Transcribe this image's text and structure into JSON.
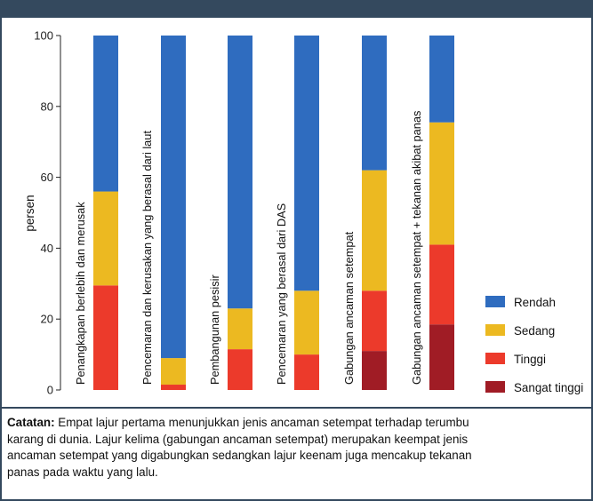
{
  "chart_data": {
    "type": "bar",
    "stacked": true,
    "ylabel": "persen",
    "ylim": [
      0,
      100
    ],
    "yticks": [
      0,
      20,
      40,
      60,
      80,
      100
    ],
    "categories": [
      "Penangkapan berlebih dan merusak",
      "Pencemaran dan kerusakan yang berasal dari laut",
      "Pembangunan pesisir",
      "Pencemaran yang berasal dari DAS",
      "Gabungan ancaman setempat",
      "Gabungan ancaman setempat + tekanan akibat panas"
    ],
    "series": [
      {
        "name": "Sangat tinggi",
        "color": "#a01c25",
        "values": [
          0,
          0,
          0,
          0,
          11,
          18.5
        ]
      },
      {
        "name": "Tinggi",
        "color": "#ec3a2b",
        "values": [
          29.5,
          1.5,
          11.5,
          10,
          17,
          22.5
        ]
      },
      {
        "name": "Sedang",
        "color": "#ecb921",
        "values": [
          26.5,
          7.5,
          11.5,
          18,
          34,
          34.5
        ]
      },
      {
        "name": "Rendah",
        "color": "#2f6cbf",
        "values": [
          44,
          91,
          77,
          72,
          38,
          24.5
        ]
      }
    ],
    "legend_order": [
      "Rendah",
      "Sedang",
      "Tinggi",
      "Sangat tinggi"
    ],
    "legend_position": "bottom-right",
    "grid": false
  },
  "note": {
    "label": "Catatan:",
    "lines": [
      " Empat lajur pertama menunjukkan jenis ancaman setempat terhadap terumbu",
      "karang di dunia.  Lajur kelima (gabungan ancaman setempat) merupakan keempat jenis",
      "ancaman setempat yang digabungkan sedangkan lajur keenam juga mencakup tekanan",
      "panas pada waktu yang lalu."
    ]
  }
}
